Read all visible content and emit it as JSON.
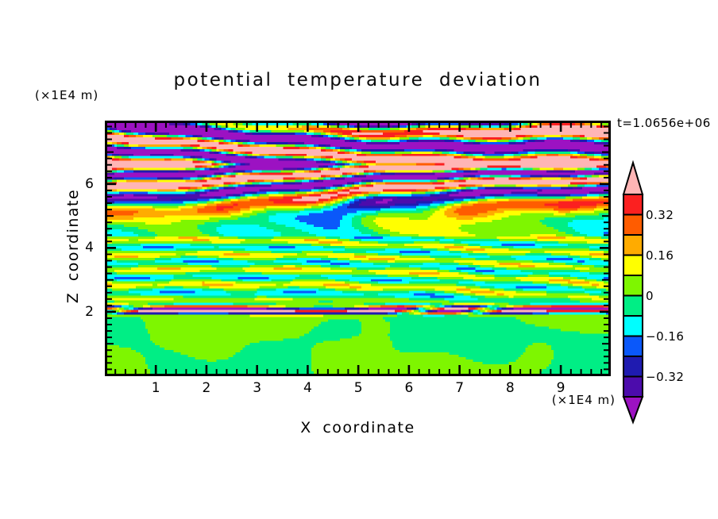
{
  "title": "potential temperature deviation",
  "time_label": "t=1.0656e+06",
  "labels": {
    "unit_top_left": "(×1E4 m)",
    "unit_bottom_right": "(×1E4 m)",
    "x_axis": "X coordinate",
    "z_axis": "Z coordinate"
  },
  "axis_x": {
    "tick_labels": [
      "1",
      "2",
      "3",
      "4",
      "5",
      "6",
      "7",
      "8",
      "9"
    ],
    "tick_values": [
      1,
      2,
      3,
      4,
      5,
      6,
      7,
      8,
      9
    ],
    "minor_step": 0.2,
    "range_min": 0.04,
    "range_max": 9.94
  },
  "axis_z": {
    "tick_labels": [
      "2",
      "4",
      "6"
    ],
    "tick_values": [
      2,
      4,
      6
    ],
    "mid_tick_values": [
      1,
      3,
      5,
      7
    ],
    "minor_step": 0.2,
    "range_min": 0.06,
    "range_max": 7.91
  },
  "colorbar": {
    "tick_labels": [
      "0.32",
      "0.16",
      "0",
      "−0.16",
      "−0.32"
    ],
    "tick_boundary_index": [
      1,
      3,
      5,
      7,
      9
    ],
    "segment_colors_top_to_bottom": [
      "#fb2020",
      "#ff5c00",
      "#ffab00",
      "#ffff00",
      "#7ef600",
      "#00ee85",
      "#00feff",
      "#0a58fa",
      "#1f1bb0",
      "#4c0cac"
    ],
    "over_arrow_color": "#ffb5b5",
    "under_arrow_color": "#9c12c2",
    "outline_color": "#000000"
  },
  "chart_data": {
    "type": "filled_contour",
    "title": "potential temperature deviation",
    "xlabel": "X coordinate (×1E4 m)",
    "ylabel": "Z coordinate (×1E4 m)",
    "time_annotation": "t=1.0656e+06",
    "x_range": [
      0,
      10
    ],
    "z_range": [
      0,
      8
    ],
    "contour_interval": 0.08,
    "levels": [
      -0.4,
      -0.32,
      -0.24,
      -0.16,
      -0.08,
      0,
      0.08,
      0.16,
      0.24,
      0.32,
      0.4
    ],
    "fill_colors_low_to_high": [
      "#9c12c2",
      "#4c0cac",
      "#1f1bb0",
      "#0a58fa",
      "#00feff",
      "#00ee85",
      "#7ef600",
      "#ffff00",
      "#ffab00",
      "#ff5c00",
      "#fb2020",
      "#ffb5b5"
    ],
    "palette_meaning": [
      {
        "range": "> 0.40",
        "color": "#ffb5b5",
        "name": "pink"
      },
      {
        "range": "0.32 to 0.40",
        "color": "#fb2020",
        "name": "red"
      },
      {
        "range": "0.24 to 0.32",
        "color": "#ff5c00",
        "name": "orange-red"
      },
      {
        "range": "0.16 to 0.24",
        "color": "#ffab00",
        "name": "orange"
      },
      {
        "range": "0.08 to 0.16",
        "color": "#ffff00",
        "name": "yellow"
      },
      {
        "range": "0.00 to 0.08",
        "color": "#7ef600",
        "name": "chartreuse"
      },
      {
        "range": "-0.08 to 0.00",
        "color": "#00ee85",
        "name": "spring-green"
      },
      {
        "range": "-0.16 to -0.08",
        "color": "#00feff",
        "name": "cyan"
      },
      {
        "range": "-0.24 to -0.16",
        "color": "#0a58fa",
        "name": "blue"
      },
      {
        "range": "-0.32 to -0.24",
        "color": "#1f1bb0",
        "name": "navy"
      },
      {
        "range": "-0.40 to -0.32",
        "color": "#4c0cac",
        "name": "indigo"
      },
      {
        "range": "< -0.40",
        "color": "#9c12c2",
        "name": "purple"
      }
    ],
    "field_model": {
      "grid_nx": 211,
      "grid_nz": 106,
      "lower_top": 1.92,
      "lower_amp": 0.06,
      "lower_detail_amp": 0.02,
      "band_center": 2.06,
      "band_width": 0.16,
      "band_amp": 0.52,
      "band_wavelength": 0.17,
      "upper_start": 2.25,
      "upper_amp_base": 0.13,
      "upper_amp_extra": 0.43,
      "upper_amp_z0": 4.55,
      "upper_amp_zscale": 1.7,
      "kz_mid": 13.5,
      "kz_top": 7.0,
      "tilt": 0.62,
      "detail_amp": 0.05,
      "cap_z": 7.35,
      "cap_zscale": 0.55,
      "cap_amp": 0.5
    },
    "description": "Vertical cross-section (x horizontal 0-10x1E4 m, z vertical 0-8x1E4 m) of potential temperature deviation at t=1.0656e+06 s. Strongly layered gravity-wave bands with amplitudes beyond +/-0.4 (pink/red/orange vs purple/navy/blue stripes) above z~5; weak +/-0.1 tilted green/yellow/cyan layers between z~2.3 and 5; a thin intense multicolored layered band near z~2; smooth blobs of +/-0.06 (two green shades) below z~2."
  }
}
